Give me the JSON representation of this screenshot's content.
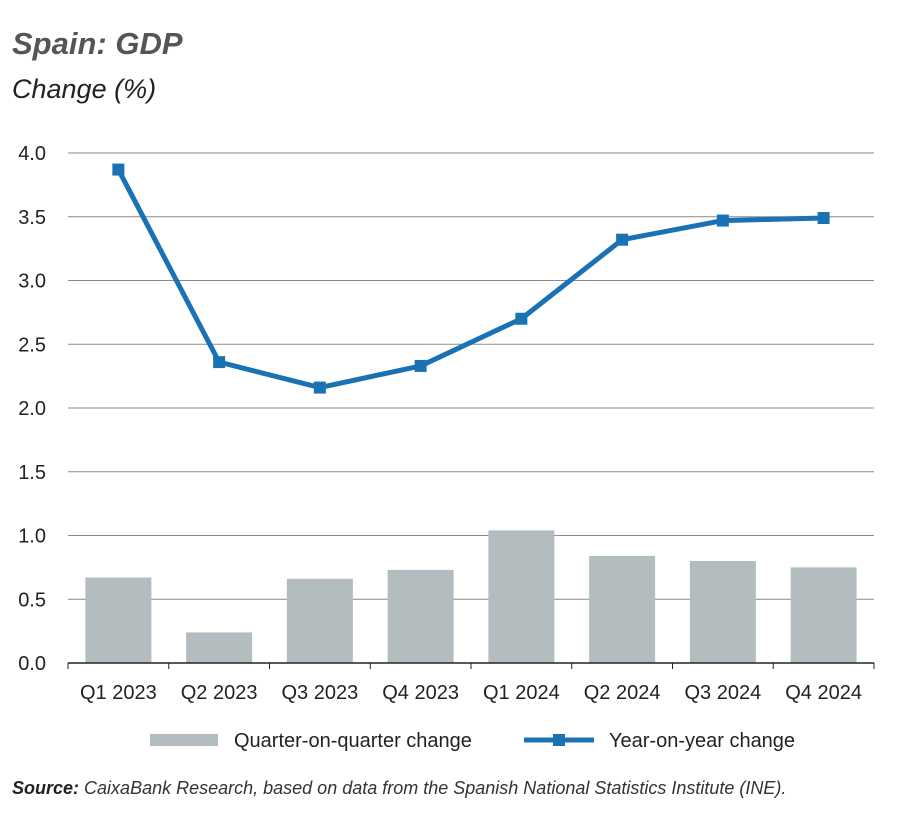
{
  "header": {
    "title": "Spain: GDP",
    "subtitle": "Change (%)"
  },
  "source": {
    "label": "Source:",
    "text": "CaixaBank Research, based on data from the Spanish National Statistics Institute (INE)."
  },
  "colors": {
    "bar": "#b3bdc0",
    "line": "#1a72b4",
    "grid": "#8a8a8a",
    "axis": "#222222"
  },
  "chart_data": {
    "type": "bar+line",
    "categories": [
      "Q1 2023",
      "Q2 2023",
      "Q3 2023",
      "Q4 2023",
      "Q1 2024",
      "Q2 2024",
      "Q3 2024",
      "Q4 2024"
    ],
    "series": [
      {
        "name": "Quarter-on-quarter change",
        "type": "bar",
        "values": [
          0.67,
          0.24,
          0.66,
          0.73,
          1.04,
          0.84,
          0.8,
          0.75
        ]
      },
      {
        "name": "Year-on-year change",
        "type": "line",
        "values": [
          3.87,
          2.36,
          2.16,
          2.33,
          2.7,
          3.32,
          3.47,
          3.49
        ]
      }
    ],
    "ylim": [
      0,
      4
    ],
    "yticks": [
      "0.0",
      "0.5",
      "1.0",
      "1.5",
      "2.0",
      "2.5",
      "3.0",
      "3.5",
      "4.0"
    ],
    "ytick_values": [
      0,
      0.5,
      1.0,
      1.5,
      2.0,
      2.5,
      3.0,
      3.5,
      4.0
    ],
    "grid": true,
    "legend_position": "bottom"
  }
}
